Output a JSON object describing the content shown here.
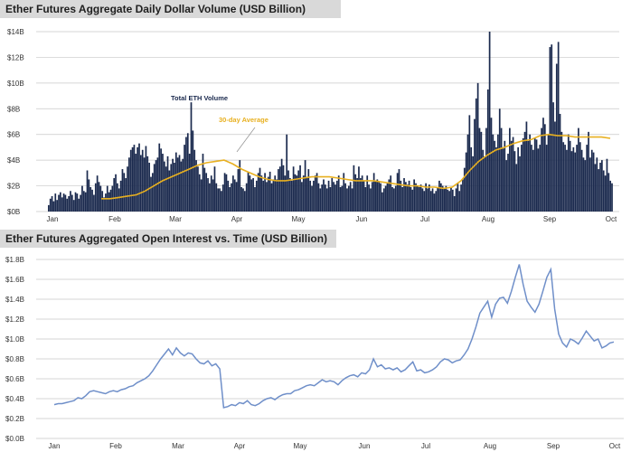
{
  "chart_data": [
    {
      "type": "bar",
      "title": "Ether Futures Aggregate Daily Dollar Volume (USD Billion)",
      "ylim": [
        0,
        14
      ],
      "y_ticks": [
        "$0B",
        "$2B",
        "$4B",
        "$6B",
        "$8B",
        "$10B",
        "$12B",
        "$14B"
      ],
      "x_ticks": [
        "Jan",
        "Feb",
        "Mar",
        "Apr",
        "May",
        "Jun",
        "Jul",
        "Aug",
        "Sep",
        "Oct"
      ],
      "annotations": [
        "Total ETH Volume",
        "30-day Average"
      ],
      "grid": "horizontal",
      "colors": {
        "bars": "#1b2a4e",
        "average": "#e8b020"
      },
      "series": [
        {
          "name": "Total ETH Volume",
          "values": [
            0.5,
            1.0,
            1.2,
            0.8,
            1.4,
            0.9,
            1.3,
            1.5,
            1.1,
            1.4,
            1.3,
            1.0,
            1.2,
            1.6,
            1.3,
            0.9,
            1.5,
            1.4,
            1.0,
            1.3,
            2.0,
            1.6,
            1.5,
            3.2,
            2.5,
            1.9,
            1.7,
            1.3,
            2.2,
            2.8,
            2.3,
            2.0,
            1.6,
            1.1,
            1.4,
            2.0,
            1.5,
            1.7,
            2.0,
            2.6,
            2.9,
            2.2,
            1.8,
            2.4,
            3.3,
            3.0,
            2.6,
            3.5,
            4.2,
            4.8,
            5.0,
            5.2,
            4.5,
            5.0,
            5.3,
            4.4,
            4.8,
            4.2,
            5.1,
            4.3,
            3.8,
            2.7,
            3.0,
            3.7,
            4.0,
            4.2,
            5.3,
            4.9,
            4.5,
            3.9,
            3.5,
            4.3,
            3.2,
            3.7,
            4.1,
            3.8,
            4.6,
            4.2,
            4.4,
            3.9,
            4.1,
            5.2,
            5.8,
            6.1,
            4.5,
            8.5,
            6.3,
            4.8,
            4.0,
            3.5,
            2.9,
            2.5,
            4.5,
            3.4,
            3.0,
            2.6,
            2.2,
            2.8,
            2.5,
            3.5,
            2.2,
            1.8,
            1.8,
            1.6,
            2.1,
            3.0,
            2.9,
            2.4,
            1.9,
            2.2,
            2.8,
            2.5,
            2.3,
            3.3,
            4.0,
            1.9,
            1.8,
            1.6,
            2.2,
            3.1,
            2.8,
            2.5,
            2.6,
            1.9,
            2.4,
            3.0,
            3.4,
            2.8,
            2.4,
            3.0,
            2.3,
            2.7,
            3.1,
            2.2,
            2.5,
            2.8,
            2.5,
            3.3,
            3.5,
            4.1,
            3.6,
            2.8,
            6.0,
            3.2,
            2.6,
            2.4,
            3.5,
            2.9,
            2.8,
            3.2,
            3.6,
            2.3,
            2.8,
            4.0,
            2.7,
            3.3,
            2.4,
            2.0,
            2.4,
            2.8,
            3.0,
            2.2,
            1.8,
            2.1,
            2.5,
            2.1,
            1.8,
            2.4,
            1.9,
            2.6,
            2.3,
            2.1,
            2.4,
            2.8,
            1.9,
            2.0,
            3.0,
            2.2,
            1.8,
            2.0,
            2.3,
            1.8,
            3.6,
            2.9,
            2.6,
            3.5,
            2.6,
            2.8,
            2.4,
            1.9,
            2.8,
            2.1,
            1.8,
            2.3,
            3.0,
            2.4,
            2.5,
            2.3,
            2.2,
            1.5,
            1.8,
            2.0,
            2.2,
            2.5,
            2.8,
            1.9,
            1.8,
            2.0,
            3.0,
            3.3,
            2.4,
            1.9,
            2.6,
            2.3,
            2.1,
            2.4,
            1.9,
            1.7,
            2.5,
            2.2,
            2.0,
            1.9,
            2.1,
            1.8,
            1.6,
            2.2,
            1.8,
            2.1,
            1.6,
            1.8,
            1.4,
            1.6,
            1.9,
            2.4,
            2.2,
            2.0,
            1.8,
            2.0,
            1.7,
            1.6,
            1.9,
            1.7,
            1.2,
            1.8,
            2.2,
            1.6,
            2.1,
            2.5,
            3.4,
            4.6,
            6.0,
            7.5,
            5.0,
            4.3,
            7.2,
            8.8,
            10.0,
            6.5,
            6.2,
            4.8,
            4.3,
            6.5,
            9.5,
            14.0,
            7.3,
            6.0,
            5.5,
            5.0,
            6.0,
            8.0,
            6.5,
            4.9,
            5.5,
            4.0,
            4.5,
            6.5,
            5.5,
            5.8,
            4.7,
            3.7,
            5.0,
            4.3,
            5.2,
            5.7,
            6.2,
            7.0,
            5.5,
            6.0,
            5.2,
            4.8,
            5.7,
            5.6,
            4.9,
            5.2,
            6.5,
            7.3,
            6.8,
            5.2,
            6.0,
            12.8,
            13.0,
            8.5,
            7.0,
            11.5,
            13.2,
            7.6,
            6.2,
            5.4,
            5.2,
            4.8,
            6.0,
            5.5,
            4.7,
            5.0,
            4.6,
            5.2,
            6.5,
            5.4,
            4.8,
            4.2,
            4.0,
            5.2,
            6.2,
            4.2,
            4.8,
            4.6,
            3.7,
            4.2,
            3.3,
            3.8,
            4.0,
            3.2,
            2.8,
            4.1,
            3.0,
            2.4,
            2.2
          ]
        },
        {
          "name": "30-day Average",
          "points": [
            [
              0.08,
              1.0
            ],
            [
              0.1,
              1.1
            ],
            [
              0.12,
              1.2
            ],
            [
              0.14,
              1.4
            ],
            [
              0.16,
              1.6
            ],
            [
              0.18,
              2.0
            ],
            [
              0.2,
              2.5
            ],
            [
              0.22,
              3.0
            ],
            [
              0.24,
              3.3
            ],
            [
              0.26,
              3.6
            ],
            [
              0.28,
              3.8
            ],
            [
              0.3,
              3.9
            ],
            [
              0.32,
              4.0
            ],
            [
              0.34,
              3.7
            ],
            [
              0.36,
              3.3
            ],
            [
              0.38,
              3.0
            ],
            [
              0.4,
              2.6
            ],
            [
              0.42,
              2.4
            ],
            [
              0.44,
              2.3
            ],
            [
              0.46,
              2.5
            ],
            [
              0.48,
              2.7
            ],
            [
              0.5,
              2.7
            ],
            [
              0.52,
              2.8
            ],
            [
              0.54,
              2.7
            ],
            [
              0.56,
              2.5
            ],
            [
              0.58,
              2.4
            ],
            [
              0.6,
              2.4
            ],
            [
              0.62,
              2.6
            ],
            [
              0.64,
              2.4
            ],
            [
              0.66,
              2.3
            ],
            [
              0.68,
              2.2
            ],
            [
              0.7,
              2.0
            ],
            [
              0.72,
              1.9
            ],
            [
              0.74,
              1.9
            ],
            [
              0.76,
              1.8
            ],
            [
              0.78,
              1.9
            ],
            [
              0.8,
              1.8
            ],
            [
              0.82,
              2.0
            ],
            [
              0.84,
              2.4
            ],
            [
              0.86,
              3.0
            ],
            [
              0.88,
              3.6
            ],
            [
              0.9,
              4.2
            ],
            [
              0.92,
              4.8
            ],
            [
              0.94,
              5.0
            ],
            [
              0.96,
              5.3
            ],
            [
              0.98,
              5.6
            ],
            [
              1.0,
              5.6
            ],
            [
              1.02,
              5.5
            ],
            [
              1.04,
              5.6
            ],
            [
              1.06,
              5.4
            ],
            [
              1.08,
              5.4
            ],
            [
              1.1,
              5.3
            ],
            [
              1.12,
              5.3
            ],
            [
              1.14,
              5.2
            ],
            [
              1.16,
              5.3
            ],
            [
              1.18,
              5.5
            ],
            [
              1.2,
              5.7
            ],
            [
              1.22,
              5.4
            ],
            [
              1.24,
              5.5
            ],
            [
              1.26,
              5.2
            ],
            [
              1.28,
              5.0
            ],
            [
              1.3,
              4.7
            ],
            [
              1.32,
              4.5
            ],
            [
              1.34,
              4.1
            ],
            [
              1.36,
              3.9
            ],
            [
              1.38,
              3.7
            ],
            [
              1.4,
              3.6
            ],
            [
              1.42,
              3.4
            ],
            [
              1.44,
              3.3
            ],
            [
              1.46,
              3.0
            ],
            [
              1.48,
              2.8
            ],
            [
              1.5,
              2.6
            ],
            [
              1.52,
              2.5
            ],
            [
              1.54,
              2.5
            ],
            [
              1.56,
              2.7
            ],
            [
              1.58,
              2.9
            ],
            [
              1.6,
              3.4
            ],
            [
              1.62,
              4.1
            ],
            [
              1.64,
              4.6
            ],
            [
              1.66,
              5.2
            ],
            [
              1.68,
              5.6
            ],
            [
              1.7,
              6.0
            ],
            [
              1.72,
              6.0
            ],
            [
              1.74,
              5.9
            ],
            [
              1.76,
              5.9
            ],
            [
              1.78,
              5.9
            ],
            [
              1.8,
              5.8
            ],
            [
              1.82,
              5.8
            ],
            [
              1.84,
              5.8
            ],
            [
              1.86,
              5.8
            ],
            [
              1.88,
              5.8
            ],
            [
              1.9,
              5.8
            ],
            [
              1.92,
              5.8
            ],
            [
              1.94,
              5.8
            ],
            [
              1.96,
              5.7
            ]
          ],
          "avg_values": [
            1.0,
            1.0,
            1.1,
            1.2,
            1.3,
            1.6,
            2.0,
            2.4,
            2.7,
            3.0,
            3.3,
            3.6,
            3.8,
            3.9,
            4.0,
            3.7,
            3.3,
            3.0,
            2.7,
            2.5,
            2.4,
            2.4,
            2.5,
            2.6,
            2.7,
            2.7,
            2.7,
            2.6,
            2.5,
            2.4,
            2.4,
            2.4,
            2.3,
            2.2,
            2.1,
            2.0,
            2.0,
            1.9,
            1.9,
            1.8,
            1.9,
            2.4,
            3.2,
            3.9,
            4.4,
            4.8,
            5.0,
            5.3,
            5.5,
            5.6,
            5.9,
            6.0,
            5.9,
            5.9,
            5.8,
            5.8,
            5.8,
            5.8,
            5.7
          ]
        }
      ]
    },
    {
      "type": "line",
      "title": "Ether Futures Aggregated Open Interest vs. Time (USD Billion)",
      "ylim": [
        0,
        1.8
      ],
      "y_ticks": [
        "$0.0B",
        "$0.2B",
        "$0.4B",
        "$0.6B",
        "$0.8B",
        "$1.0B",
        "$1.2B",
        "$1.4B",
        "$1.6B",
        "$1.8B"
      ],
      "x_ticks": [
        "Jan",
        "Feb",
        "Mar",
        "Apr",
        "May",
        "Jun",
        "Jul",
        "Aug",
        "Sep",
        "Oct"
      ],
      "grid": "horizontal",
      "colors": {
        "line": "#6f8fc9"
      },
      "values": [
        0.34,
        0.35,
        0.35,
        0.36,
        0.37,
        0.38,
        0.41,
        0.4,
        0.43,
        0.47,
        0.48,
        0.47,
        0.46,
        0.45,
        0.47,
        0.48,
        0.47,
        0.49,
        0.5,
        0.52,
        0.53,
        0.56,
        0.58,
        0.6,
        0.63,
        0.68,
        0.74,
        0.8,
        0.85,
        0.9,
        0.84,
        0.91,
        0.86,
        0.83,
        0.86,
        0.85,
        0.8,
        0.76,
        0.75,
        0.78,
        0.73,
        0.75,
        0.7,
        0.31,
        0.32,
        0.34,
        0.33,
        0.36,
        0.35,
        0.38,
        0.34,
        0.33,
        0.35,
        0.38,
        0.4,
        0.41,
        0.39,
        0.42,
        0.44,
        0.45,
        0.45,
        0.48,
        0.49,
        0.51,
        0.53,
        0.54,
        0.53,
        0.56,
        0.59,
        0.57,
        0.58,
        0.57,
        0.54,
        0.58,
        0.61,
        0.63,
        0.64,
        0.62,
        0.66,
        0.65,
        0.69,
        0.8,
        0.72,
        0.74,
        0.7,
        0.71,
        0.69,
        0.71,
        0.67,
        0.69,
        0.73,
        0.77,
        0.68,
        0.69,
        0.66,
        0.67,
        0.69,
        0.72,
        0.77,
        0.8,
        0.79,
        0.76,
        0.78,
        0.79,
        0.84,
        0.9,
        1.0,
        1.12,
        1.26,
        1.32,
        1.38,
        1.22,
        1.35,
        1.41,
        1.42,
        1.36,
        1.48,
        1.62,
        1.75,
        1.55,
        1.38,
        1.32,
        1.27,
        1.35,
        1.48,
        1.62,
        1.7,
        1.3,
        1.05,
        0.96,
        0.92,
        1.0,
        0.98,
        0.95,
        1.01,
        1.08,
        1.03,
        0.98,
        1.0,
        0.91,
        0.93,
        0.96,
        0.97
      ]
    }
  ]
}
